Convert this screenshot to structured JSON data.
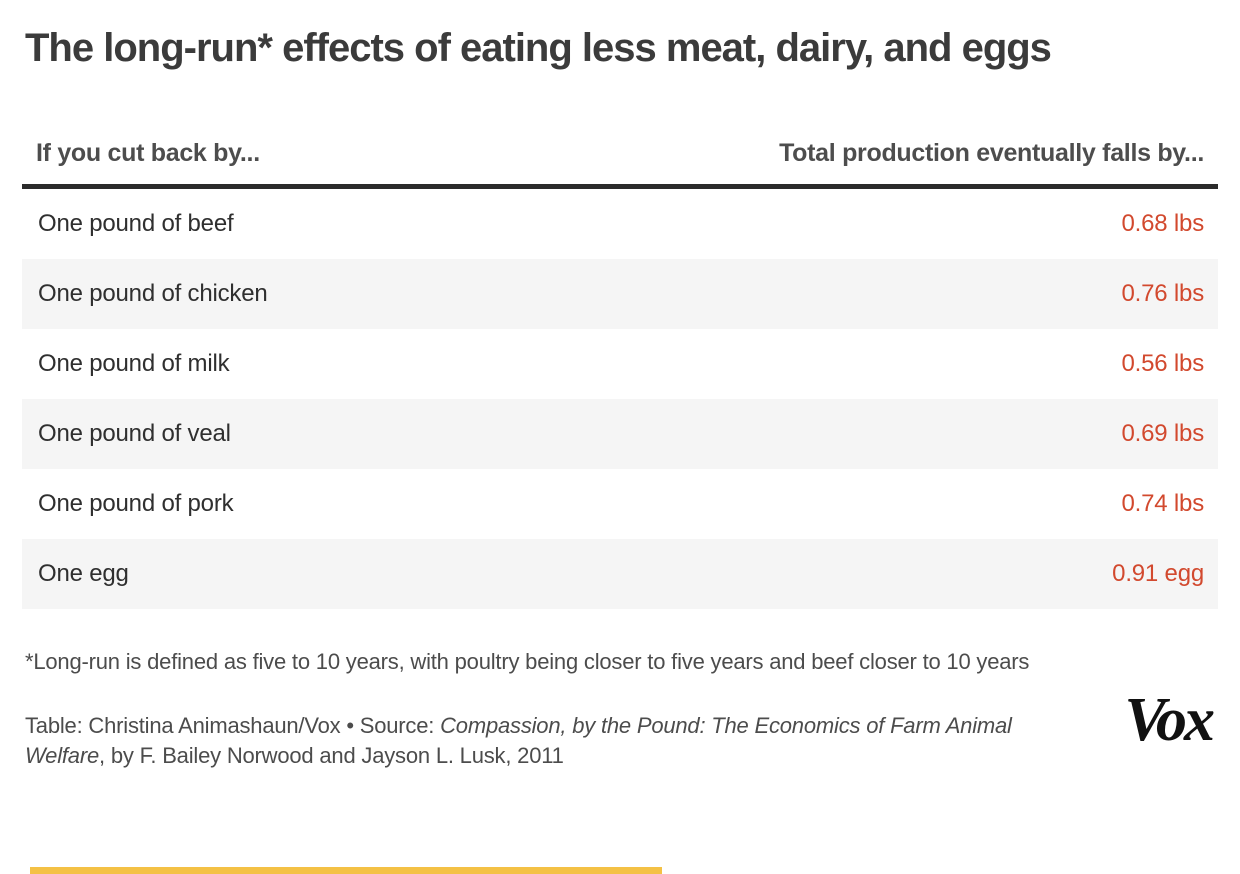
{
  "title": "The long-run* effects of eating less meat, dairy, and eggs",
  "table": {
    "headers": {
      "left": "If you cut back by...",
      "right": "Total production eventually falls by..."
    },
    "rows": [
      {
        "item": "One pound of beef",
        "value": "0.68 lbs"
      },
      {
        "item": "One pound of chicken",
        "value": "0.76 lbs"
      },
      {
        "item": "One pound of milk",
        "value": "0.56 lbs"
      },
      {
        "item": "One pound of veal",
        "value": "0.69 lbs"
      },
      {
        "item": "One pound of pork",
        "value": "0.74 lbs"
      },
      {
        "item": "One egg",
        "value": "0.91 egg"
      }
    ]
  },
  "footnote": "*Long-run is defined as five to 10 years, with poultry being closer to five years and beef closer to 10 years",
  "credit": {
    "prefix": "Table: Christina Animashaun/Vox • Source: ",
    "source_italic": "Compassion, by the Pound: The Economics of Farm Animal Welfare",
    "suffix": ", by F. Bailey Norwood and Jayson L. Lusk, 2011"
  },
  "logo": {
    "text": "Vox"
  },
  "colors": {
    "value_accent": "#d2492e",
    "alt_row_bg": "#f5f5f5",
    "header_rule": "#2b2b2b",
    "title_text": "#3b3b3b",
    "muted_text": "#4c4c4c",
    "gold_bar": "#f4c145",
    "logo_black": "#111111"
  },
  "chart_data": {
    "type": "table",
    "title": "The long-run* effects of eating less meat, dairy, and eggs",
    "columns": [
      "If you cut back by...",
      "Total production eventually falls by..."
    ],
    "categories": [
      "One pound of beef",
      "One pound of chicken",
      "One pound of milk",
      "One pound of veal",
      "One pound of pork",
      "One egg"
    ],
    "values": [
      0.68,
      0.76,
      0.56,
      0.69,
      0.74,
      0.91
    ],
    "value_labels": [
      "0.68 lbs",
      "0.76 lbs",
      "0.56 lbs",
      "0.69 lbs",
      "0.74 lbs",
      "0.91 egg"
    ],
    "footnote": "*Long-run is defined as five to 10 years, with poultry being closer to five years and beef closer to 10 years",
    "credit": "Table: Christina Animashaun/Vox • Source: Compassion, by the Pound: The Economics of Farm Animal Welfare, by F. Bailey Norwood and Jayson L. Lusk, 2011",
    "layout": {
      "alternating_rows": true,
      "value_alignment": "right",
      "grid": false,
      "legend": "none"
    }
  }
}
